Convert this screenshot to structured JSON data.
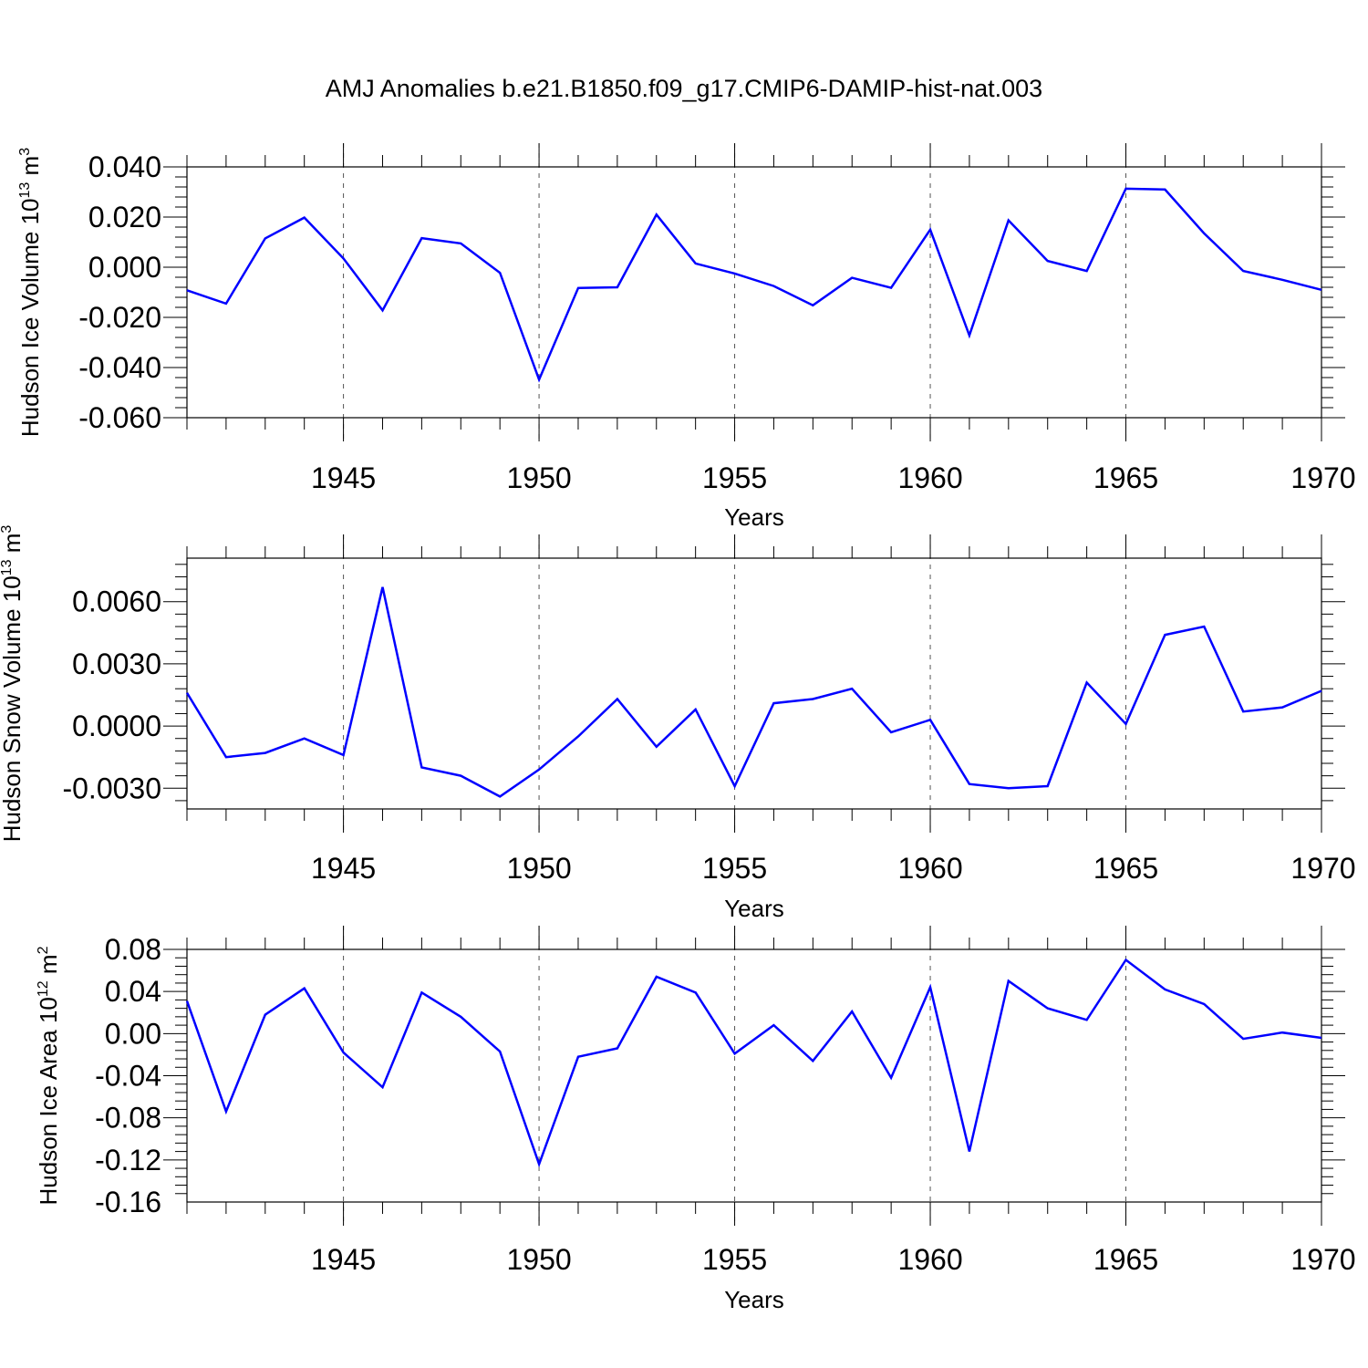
{
  "title": "AMJ Anomalies b.e21.B1850.f09_g17.CMIP6-DAMIP-hist-nat.003",
  "colors": {
    "line": "#0000ff",
    "axis": "#000000",
    "grid": "#555555"
  },
  "chart_data": [
    {
      "type": "line",
      "ylabel": "Hudson Ice Volume 10",
      "ylabel_sup": "13",
      "ylabel_unit": " m",
      "ylabel_unit_sup": "3",
      "xlabel": "Years",
      "xlim": [
        1941,
        1970
      ],
      "ylim": [
        -0.06,
        0.04
      ],
      "yticks": [
        -0.06,
        -0.04,
        -0.02,
        0.0,
        0.02,
        0.04
      ],
      "ytick_labels": [
        "-0.060",
        "-0.040",
        "-0.020",
        "0.000",
        "0.020",
        "0.040"
      ],
      "xticks": [
        1945,
        1950,
        1955,
        1960,
        1965,
        1970
      ],
      "xtick_labels": [
        "1945",
        "1950",
        "1955",
        "1960",
        "1965",
        "1970"
      ],
      "grid": "vertical dashed at major x ticks",
      "x": [
        1941,
        1942,
        1943,
        1944,
        1945,
        1946,
        1947,
        1948,
        1949,
        1950,
        1951,
        1952,
        1953,
        1954,
        1955,
        1956,
        1957,
        1958,
        1959,
        1960,
        1961,
        1962,
        1963,
        1964,
        1965,
        1966,
        1967,
        1968,
        1969,
        1970
      ],
      "values": [
        -0.0092,
        -0.0145,
        0.0115,
        0.0198,
        0.0035,
        -0.0172,
        0.0116,
        0.0095,
        -0.0022,
        -0.0448,
        -0.0083,
        -0.008,
        0.021,
        0.0015,
        -0.0025,
        -0.0075,
        -0.0152,
        -0.0042,
        -0.0082,
        0.015,
        -0.0272,
        0.0187,
        0.0025,
        -0.0015,
        0.0313,
        0.031,
        0.0135,
        -0.0015,
        -0.005,
        -0.009
      ]
    },
    {
      "type": "line",
      "ylabel": "Hudson Snow Volume 10",
      "ylabel_sup": "13",
      "ylabel_unit": " m",
      "ylabel_unit_sup": "3",
      "xlabel": "Years",
      "xlim": [
        1941,
        1970
      ],
      "ylim": [
        -0.004,
        0.0081
      ],
      "yticks": [
        -0.003,
        0.0,
        0.003,
        0.006
      ],
      "ytick_labels": [
        "-0.0030",
        "0.0000",
        "0.0030",
        "0.0060"
      ],
      "xticks": [
        1945,
        1950,
        1955,
        1960,
        1965,
        1970
      ],
      "xtick_labels": [
        "1945",
        "1950",
        "1955",
        "1960",
        "1965",
        "1970"
      ],
      "grid": "vertical dashed at major x ticks",
      "x": [
        1941,
        1942,
        1943,
        1944,
        1945,
        1946,
        1947,
        1948,
        1949,
        1950,
        1951,
        1952,
        1953,
        1954,
        1955,
        1956,
        1957,
        1958,
        1959,
        1960,
        1961,
        1962,
        1963,
        1964,
        1965,
        1966,
        1967,
        1968,
        1969,
        1970
      ],
      "values": [
        0.0016,
        -0.0015,
        -0.0013,
        -0.0006,
        -0.0014,
        0.0067,
        -0.002,
        -0.0024,
        -0.0034,
        -0.0021,
        -0.0005,
        0.0013,
        -0.001,
        0.0008,
        -0.0029,
        0.0011,
        0.0013,
        0.0018,
        -0.0003,
        0.0003,
        -0.0028,
        -0.003,
        -0.0029,
        0.0021,
        0.0001,
        0.0044,
        0.0048,
        0.0007,
        0.0009,
        0.0017
      ]
    },
    {
      "type": "line",
      "ylabel": "Hudson Ice Area 10",
      "ylabel_sup": "12",
      "ylabel_unit": " m",
      "ylabel_unit_sup": "2",
      "xlabel": "Years",
      "xlim": [
        1941,
        1970
      ],
      "ylim": [
        -0.16,
        0.08
      ],
      "yticks": [
        -0.16,
        -0.12,
        -0.08,
        -0.04,
        0.0,
        0.04,
        0.08
      ],
      "ytick_labels": [
        "-0.16",
        "-0.12",
        "-0.08",
        "-0.04",
        "0.00",
        "0.04",
        "0.08"
      ],
      "xticks": [
        1945,
        1950,
        1955,
        1960,
        1965,
        1970
      ],
      "xtick_labels": [
        "1945",
        "1950",
        "1955",
        "1960",
        "1965",
        "1970"
      ],
      "grid": "vertical dashed at major x ticks",
      "x": [
        1941,
        1942,
        1943,
        1944,
        1945,
        1946,
        1947,
        1948,
        1949,
        1950,
        1951,
        1952,
        1953,
        1954,
        1955,
        1956,
        1957,
        1958,
        1959,
        1960,
        1961,
        1962,
        1963,
        1964,
        1965,
        1966,
        1967,
        1968,
        1969,
        1970
      ],
      "values": [
        0.031,
        -0.074,
        0.018,
        0.043,
        -0.018,
        -0.051,
        0.039,
        0.016,
        -0.017,
        -0.124,
        -0.022,
        -0.014,
        0.054,
        0.039,
        -0.019,
        0.008,
        -0.026,
        0.021,
        -0.042,
        0.044,
        -0.112,
        0.05,
        0.024,
        0.013,
        0.07,
        0.042,
        0.028,
        -0.005,
        0.001,
        -0.004
      ]
    }
  ]
}
